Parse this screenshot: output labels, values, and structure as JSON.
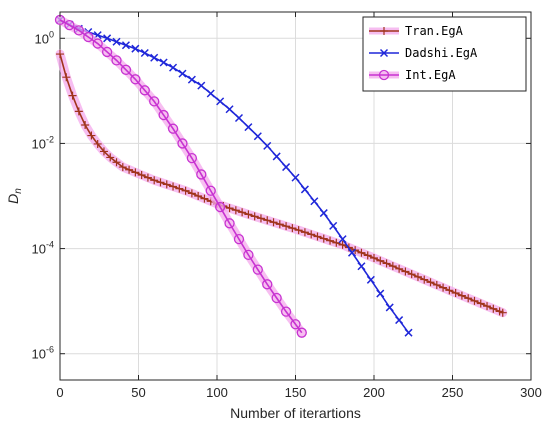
{
  "chart_data": {
    "type": "line",
    "xlabel": "Number of iterartions",
    "ylabel": "D",
    "ylabel_sub": "n",
    "xlim": [
      0,
      300
    ],
    "ylim_log10": [
      -6.5,
      0.5
    ],
    "yscale": "log",
    "grid": true,
    "legend_position": "top-right",
    "x_ticks": [
      0,
      50,
      100,
      150,
      200,
      250,
      300
    ],
    "y_ticks": [
      {
        "exp": 0,
        "base": "10",
        "label": "0"
      },
      {
        "exp": -2,
        "base": "10",
        "label": "-2"
      },
      {
        "exp": -4,
        "base": "10",
        "label": "-4"
      },
      {
        "exp": -6,
        "base": "10",
        "label": "-6"
      }
    ],
    "series": [
      {
        "name": "Tran.EgA",
        "color": "#a0341c",
        "halo": "#f4a8ec",
        "marker": "plus",
        "x_start": 0,
        "x_end": 282,
        "step": 4,
        "knots_x": [
          0,
          5,
          10,
          15,
          20,
          25,
          30,
          40,
          60,
          80,
          100,
          120,
          150,
          180,
          200,
          250,
          282
        ],
        "knots_logy": [
          -0.3,
          -0.85,
          -1.25,
          -1.6,
          -1.85,
          -2.05,
          -2.22,
          -2.45,
          -2.7,
          -2.9,
          -3.15,
          -3.35,
          -3.63,
          -3.93,
          -4.18,
          -4.82,
          -5.22
        ]
      },
      {
        "name": "Dadshi.EgA",
        "color": "#1f27d9",
        "halo": null,
        "marker": "x",
        "x_start": 0,
        "x_end": 222,
        "step": 6,
        "knots_x": [
          0,
          10,
          30,
          50,
          70,
          90,
          110,
          130,
          150,
          170,
          180,
          190,
          200,
          210,
          222
        ],
        "knots_logy": [
          0.35,
          0.2,
          0.0,
          -0.22,
          -0.52,
          -0.9,
          -1.4,
          -1.98,
          -2.65,
          -3.4,
          -3.82,
          -4.25,
          -4.68,
          -5.12,
          -5.6
        ]
      },
      {
        "name": "Int.EgA",
        "color": "#c733d1",
        "halo": "#f4a8ec",
        "marker": "circle",
        "x_start": 0,
        "x_end": 154,
        "step": 6,
        "knots_x": [
          0,
          12,
          24,
          36,
          48,
          60,
          72,
          84,
          96,
          108,
          120,
          132,
          144,
          154
        ],
        "knots_logy": [
          0.35,
          0.15,
          -0.1,
          -0.42,
          -0.78,
          -1.2,
          -1.72,
          -2.28,
          -2.9,
          -3.52,
          -4.12,
          -4.68,
          -5.2,
          -5.6
        ]
      }
    ]
  }
}
